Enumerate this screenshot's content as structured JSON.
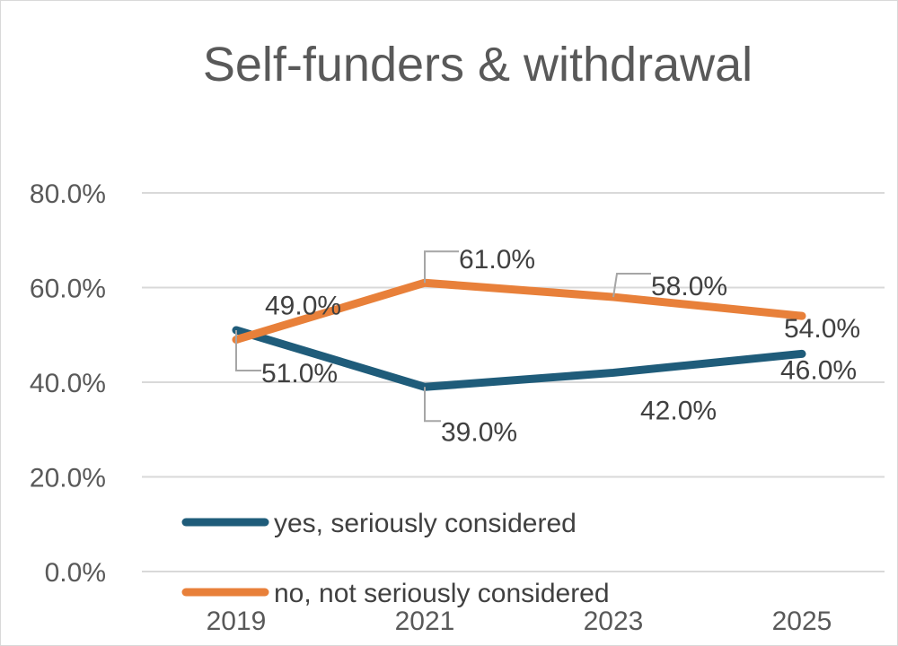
{
  "chart_data": {
    "type": "line",
    "title": "Self-funders & withdrawal",
    "xlabel": "",
    "ylabel": "",
    "categories": [
      "2019",
      "2021",
      "2023",
      "2025"
    ],
    "ylim": [
      0,
      80
    ],
    "yticks": [
      "0.0%",
      "20.0%",
      "40.0%",
      "60.0%",
      "80.0%"
    ],
    "grid": true,
    "legend_position": "bottom-inside",
    "series": [
      {
        "name": "yes, seriously considered",
        "color": "#1f5c7a",
        "values": [
          51,
          39,
          42,
          46
        ],
        "labels": [
          "51.0%",
          "39.0%",
          "42.0%",
          "46.0%"
        ]
      },
      {
        "name": "no, not seriously considered",
        "color": "#e8803a",
        "values": [
          49,
          61,
          58,
          54
        ],
        "labels": [
          "49.0%",
          "61.0%",
          "58.0%",
          "54.0%"
        ]
      }
    ]
  }
}
